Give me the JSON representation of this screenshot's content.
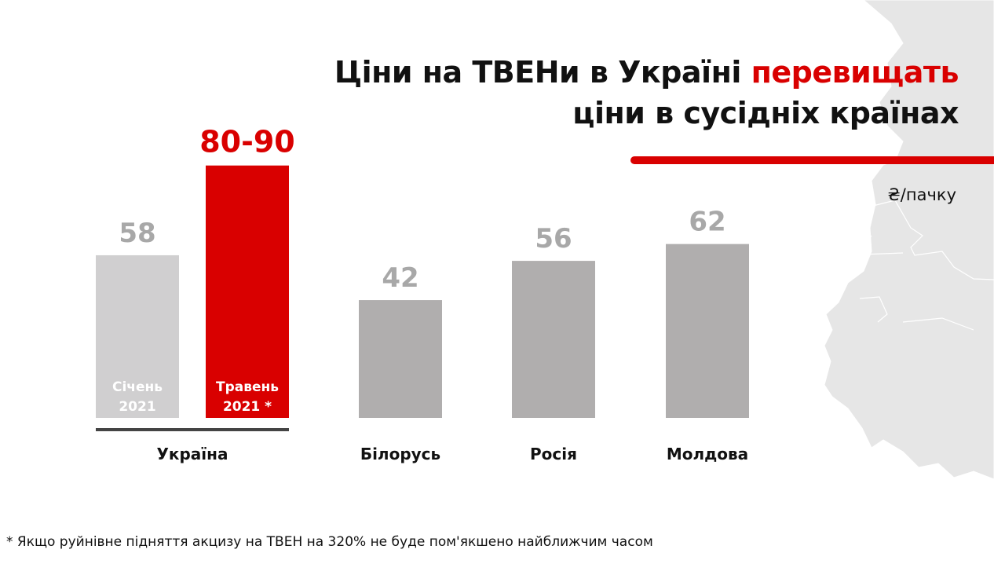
{
  "title": {
    "line1_black": "Ціни на ТВЕНи в Україні",
    "line1_red": "перевищать",
    "line2": "ціни в сусідніх країнах"
  },
  "unit": "₴/пачку",
  "footnote": "* Якщо руйнівне підняття акцизу на ТВЕН на 320% не буде пом'якшено найближчим часом",
  "colors": {
    "accent": "#d90000",
    "bar_light": "#d0cfd0",
    "bar_gray": "#b0aeae",
    "label_gray": "#a8a8a8",
    "map": "#e6e6e6"
  },
  "chart_data": {
    "type": "bar",
    "unit": "₴/пачку",
    "groups": [
      {
        "label": "Україна",
        "bars": [
          {
            "value": 58,
            "label": "58",
            "inner_label": [
              "Січень",
              "2021"
            ],
            "color": "#d0cfd0",
            "label_color": "#a8a8a8"
          },
          {
            "value": 90,
            "label": "80-90",
            "range": [
              80,
              90
            ],
            "inner_label": [
              "Травень",
              "2021 *"
            ],
            "color": "#d90000",
            "label_color": "#d90000"
          }
        ]
      },
      {
        "label": "Білорусь",
        "bars": [
          {
            "value": 42,
            "label": "42",
            "color": "#b0aeae",
            "label_color": "#a8a8a8"
          }
        ]
      },
      {
        "label": "Росія",
        "bars": [
          {
            "value": 56,
            "label": "56",
            "color": "#b0aeae",
            "label_color": "#a8a8a8"
          }
        ]
      },
      {
        "label": "Молдова",
        "bars": [
          {
            "value": 62,
            "label": "62",
            "color": "#b0aeae",
            "label_color": "#a8a8a8"
          }
        ]
      }
    ]
  }
}
